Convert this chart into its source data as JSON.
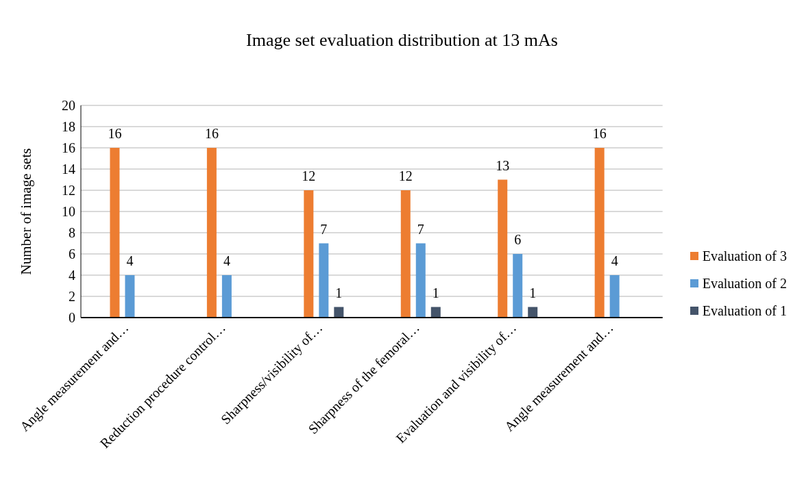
{
  "chart_data": {
    "type": "bar",
    "title": "Image set evaluation distribution at 13 mAs",
    "ylabel": "Number of image sets",
    "categories": [
      "Angle measurement and…",
      "Reduction procedure control…",
      "Sharpness/visibility of…",
      "Sharpness of the femoral…",
      "Evaluation and visibility of…",
      "Angle measurement and…"
    ],
    "series": [
      {
        "name": "Evaluation of 3",
        "color": "#ed7d31",
        "values": [
          16,
          16,
          12,
          12,
          13,
          16
        ]
      },
      {
        "name": "Evaluation of 2",
        "color": "#5b9bd5",
        "values": [
          4,
          4,
          7,
          7,
          6,
          4
        ]
      },
      {
        "name": "Evaluation of 1",
        "color": "#44546a",
        "values": [
          null,
          null,
          1,
          1,
          1,
          null
        ]
      }
    ],
    "ylim": [
      0,
      20
    ],
    "yticks": [
      0,
      2,
      4,
      6,
      8,
      10,
      12,
      14,
      16,
      18,
      20
    ],
    "grid": "y",
    "legend": "right",
    "data_labels": true
  }
}
